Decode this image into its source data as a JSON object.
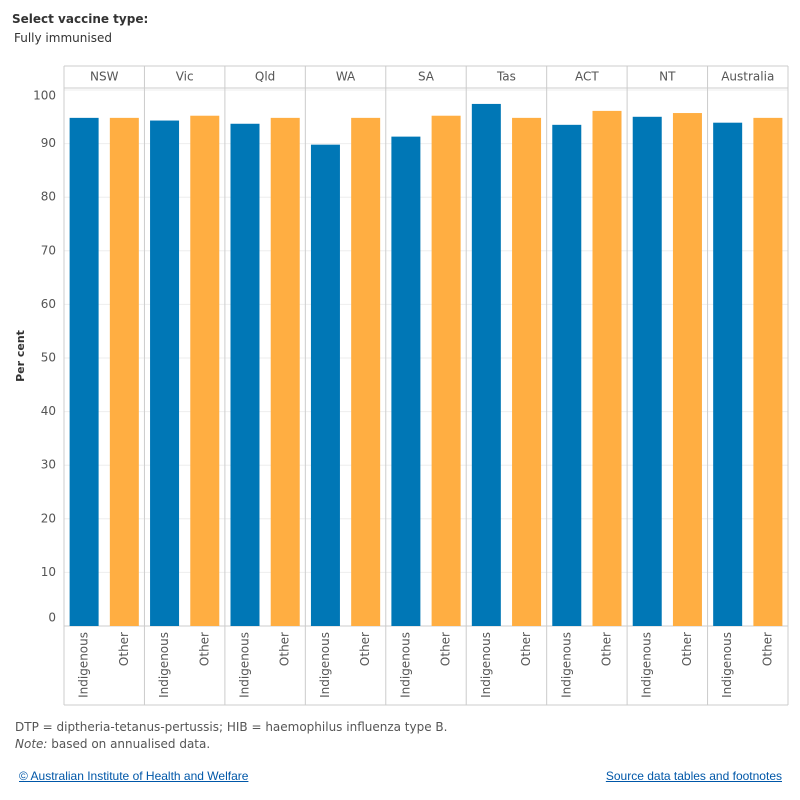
{
  "filter": {
    "label": "Select vaccine type:",
    "value": "Fully immunised"
  },
  "chart_data": {
    "type": "bar",
    "categories": [
      "NSW",
      "Vic",
      "Qld",
      "WA",
      "SA",
      "Tas",
      "ACT",
      "NT",
      "Australia"
    ],
    "series": [
      {
        "name": "Indigenous",
        "color": "#0077b6",
        "values": [
          94.8,
          94.3,
          93.7,
          89.8,
          91.3,
          97.4,
          93.5,
          95.0,
          93.9
        ]
      },
      {
        "name": "Other",
        "color": "#ffae42",
        "values": [
          94.8,
          95.2,
          94.8,
          94.8,
          95.2,
          94.8,
          96.1,
          95.7,
          94.8
        ]
      }
    ],
    "ylabel": "Per cent",
    "ylim": [
      0,
      100
    ],
    "yticks": [
      0,
      10,
      20,
      30,
      40,
      50,
      60,
      70,
      80,
      90,
      100
    ],
    "grid": true
  },
  "footnotes": {
    "abbreviations": "DTP = diptheria-tetanus-pertussis; HIB = haemophilus influenza type B.",
    "note_label": "Note:",
    "note_text": "based on annualised data."
  },
  "links": {
    "copyright": "© Australian Institute of Health and Welfare",
    "source": "Source data tables and footnotes"
  }
}
